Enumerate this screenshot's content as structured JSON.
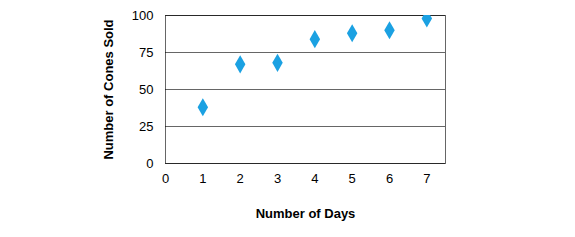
{
  "chart_data": {
    "type": "scatter",
    "x_label": "Number of Days",
    "y_label": "Number of Cones Sold",
    "x": [
      1,
      2,
      3,
      4,
      5,
      6,
      7
    ],
    "values": [
      38,
      67,
      68,
      84,
      88,
      90,
      98
    ],
    "color": "#1ba1e2",
    "marker": "diamond",
    "xlim": [
      0,
      7.5
    ],
    "xticks": [
      0,
      1,
      2,
      3,
      4,
      5,
      6,
      7
    ],
    "ylim": [
      0,
      100
    ],
    "yticks": [
      0,
      25,
      50,
      75,
      100
    ],
    "grid": true
  }
}
